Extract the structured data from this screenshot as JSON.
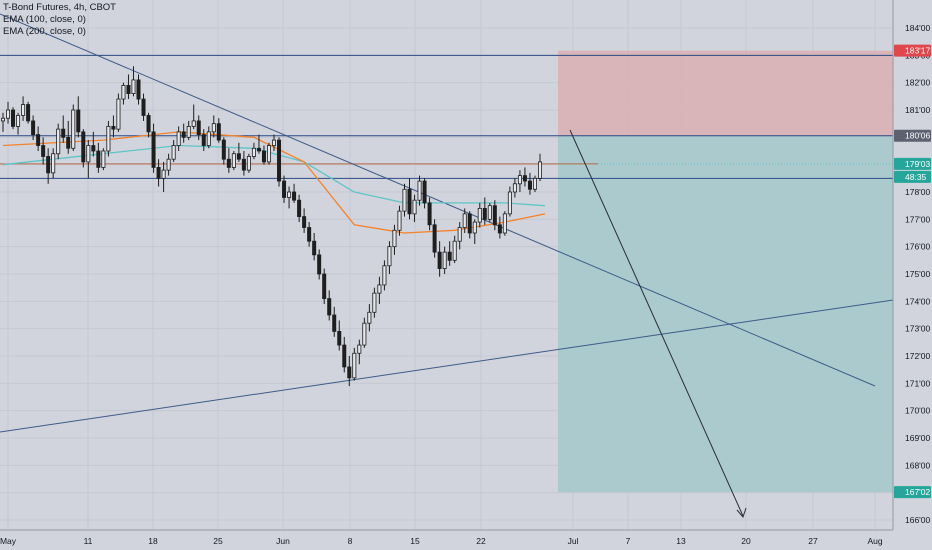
{
  "legend": {
    "symbol": "T-Bond Futures, 4h, CBOT",
    "ema1": "EMA (100, close, 0)",
    "ema2": "EMA (200, close, 0)"
  },
  "colors": {
    "background": "#d1d4dc",
    "grid": "#c5c8d0",
    "candle_up": "#1e1e1e",
    "candle_down": "#1e1e1e",
    "ema100": "#f5822a",
    "ema200": "#5ec5c8",
    "trendline": "#3d5a8a",
    "hline": "#2a4a85",
    "stop_zone": "#d9b0b5",
    "target_zone": "#a5c9cb",
    "stop_label": "#e0474c",
    "target_label": "#26a69a",
    "price_label": "#26a69a",
    "arrow": "#2a2e39"
  },
  "chart_data": {
    "type": "candlestick",
    "title": "T-Bond Futures, 4h, CBOT",
    "ylim": [
      165.6,
      184.5
    ],
    "y_ticks": [
      "184'00",
      "183'00",
      "182'00",
      "181'00",
      "180'00",
      "179'00",
      "178'00",
      "177'00",
      "176'00",
      "175'00",
      "174'00",
      "173'00",
      "172'00",
      "171'00",
      "170'00",
      "169'00",
      "168'00",
      "167'00",
      "166'00"
    ],
    "x_ticks": [
      "May",
      "11",
      "18",
      "25",
      "Jun",
      "8",
      "15",
      "22",
      "Jul",
      "7",
      "13",
      "20",
      "27",
      "Aug"
    ],
    "price_labels": {
      "stop": "183'17",
      "entry": "180'06",
      "current": "179'03",
      "countdown": "48:35",
      "target": "167'02"
    },
    "horizontal_levels": [
      183.0,
      180.06,
      179.03,
      178.5
    ],
    "position": {
      "entry": 180.06,
      "stop": 183.17,
      "target": 167.02
    },
    "candles": [
      [
        180.6,
        180.9,
        180.2,
        180.7
      ],
      [
        180.7,
        181.3,
        180.5,
        181.0
      ],
      [
        181.0,
        181.1,
        180.3,
        180.4
      ],
      [
        180.4,
        180.9,
        180.1,
        180.8
      ],
      [
        180.8,
        181.5,
        180.6,
        181.2
      ],
      [
        181.2,
        181.3,
        180.5,
        180.6
      ],
      [
        180.6,
        180.8,
        179.9,
        180.1
      ],
      [
        180.1,
        180.4,
        179.5,
        179.7
      ],
      [
        179.7,
        180.0,
        179.0,
        179.3
      ],
      [
        179.3,
        179.6,
        178.3,
        178.7
      ],
      [
        178.7,
        179.6,
        178.5,
        179.4
      ],
      [
        179.4,
        180.5,
        179.2,
        180.3
      ],
      [
        180.3,
        180.8,
        179.8,
        180.0
      ],
      [
        180.0,
        180.6,
        179.4,
        179.6
      ],
      [
        179.6,
        181.2,
        179.5,
        181.0
      ],
      [
        181.0,
        181.5,
        180.0,
        180.2
      ],
      [
        180.2,
        180.3,
        178.9,
        179.1
      ],
      [
        179.1,
        179.9,
        178.5,
        179.7
      ],
      [
        179.7,
        180.2,
        179.3,
        179.5
      ],
      [
        179.5,
        179.8,
        178.7,
        178.9
      ],
      [
        178.9,
        179.6,
        178.8,
        179.5
      ],
      [
        179.5,
        180.6,
        179.3,
        180.4
      ],
      [
        180.4,
        180.8,
        180.0,
        180.3
      ],
      [
        180.3,
        181.6,
        180.2,
        181.4
      ],
      [
        181.4,
        182.0,
        181.2,
        181.9
      ],
      [
        181.9,
        182.3,
        181.4,
        181.6
      ],
      [
        181.6,
        182.6,
        181.5,
        182.1
      ],
      [
        182.1,
        182.3,
        181.2,
        181.4
      ],
      [
        181.4,
        181.6,
        180.6,
        180.8
      ],
      [
        180.8,
        180.9,
        180.0,
        180.2
      ],
      [
        180.2,
        180.5,
        178.7,
        178.9
      ],
      [
        178.9,
        179.2,
        178.2,
        178.5
      ],
      [
        178.5,
        179.1,
        178.0,
        178.8
      ],
      [
        178.8,
        179.4,
        178.6,
        179.2
      ],
      [
        179.2,
        179.9,
        179.1,
        179.7
      ],
      [
        179.7,
        180.4,
        179.5,
        180.2
      ],
      [
        180.2,
        180.5,
        179.8,
        180.0
      ],
      [
        180.0,
        180.6,
        179.9,
        180.4
      ],
      [
        180.4,
        181.2,
        180.3,
        180.6
      ],
      [
        180.6,
        180.8,
        179.9,
        180.1
      ],
      [
        180.1,
        180.3,
        179.5,
        179.7
      ],
      [
        179.7,
        180.4,
        179.6,
        180.2
      ],
      [
        180.2,
        180.8,
        180.0,
        180.5
      ],
      [
        180.5,
        180.7,
        179.8,
        179.9
      ],
      [
        179.9,
        180.0,
        179.0,
        179.2
      ],
      [
        179.2,
        179.6,
        178.7,
        178.9
      ],
      [
        178.9,
        179.5,
        178.8,
        179.4
      ],
      [
        179.4,
        179.8,
        179.1,
        179.2
      ],
      [
        179.2,
        179.5,
        178.6,
        178.8
      ],
      [
        178.8,
        179.4,
        178.7,
        179.3
      ],
      [
        179.3,
        179.8,
        179.2,
        179.6
      ],
      [
        179.6,
        180.1,
        179.4,
        179.5
      ],
      [
        179.5,
        179.7,
        179.0,
        179.1
      ],
      [
        179.1,
        179.8,
        179.0,
        179.7
      ],
      [
        179.7,
        180.1,
        179.5,
        179.9
      ],
      [
        179.9,
        180.0,
        178.2,
        178.4
      ],
      [
        178.4,
        178.6,
        177.6,
        177.8
      ],
      [
        177.8,
        178.2,
        177.4,
        178.0
      ],
      [
        178.0,
        178.3,
        177.6,
        177.7
      ],
      [
        177.7,
        177.9,
        176.9,
        177.1
      ],
      [
        177.1,
        177.4,
        176.5,
        176.7
      ],
      [
        176.7,
        176.9,
        176.0,
        176.2
      ],
      [
        176.2,
        176.5,
        175.5,
        175.7
      ],
      [
        175.7,
        175.9,
        174.8,
        175.0
      ],
      [
        175.0,
        175.2,
        173.9,
        174.1
      ],
      [
        174.1,
        174.4,
        173.3,
        173.5
      ],
      [
        173.5,
        173.8,
        172.7,
        172.9
      ],
      [
        172.9,
        173.3,
        172.2,
        172.4
      ],
      [
        172.4,
        172.7,
        171.4,
        171.6
      ],
      [
        171.6,
        172.0,
        170.9,
        171.2
      ],
      [
        171.2,
        172.3,
        171.1,
        172.1
      ],
      [
        172.1,
        172.6,
        171.7,
        172.4
      ],
      [
        172.4,
        173.4,
        172.3,
        173.2
      ],
      [
        173.2,
        173.9,
        172.9,
        173.6
      ],
      [
        173.6,
        174.5,
        173.4,
        174.3
      ],
      [
        174.3,
        174.9,
        173.9,
        174.6
      ],
      [
        174.6,
        175.5,
        174.4,
        175.3
      ],
      [
        175.3,
        176.2,
        175.0,
        176.0
      ],
      [
        176.0,
        176.8,
        175.7,
        176.6
      ],
      [
        176.6,
        177.5,
        176.4,
        177.3
      ],
      [
        177.3,
        178.3,
        177.1,
        178.1
      ],
      [
        178.1,
        178.5,
        177.0,
        177.2
      ],
      [
        177.2,
        177.9,
        176.9,
        177.7
      ],
      [
        177.7,
        178.6,
        177.5,
        178.4
      ],
      [
        178.4,
        178.5,
        177.4,
        177.6
      ],
      [
        177.6,
        177.8,
        176.6,
        176.8
      ],
      [
        176.8,
        177.0,
        175.6,
        175.8
      ],
      [
        175.8,
        176.2,
        174.9,
        175.2
      ],
      [
        175.2,
        176.0,
        175.0,
        175.8
      ],
      [
        175.8,
        176.2,
        175.3,
        175.5
      ],
      [
        175.5,
        176.4,
        175.4,
        176.2
      ],
      [
        176.2,
        176.9,
        175.9,
        176.7
      ],
      [
        176.7,
        177.4,
        176.5,
        177.2
      ],
      [
        177.2,
        177.3,
        176.3,
        176.5
      ],
      [
        176.5,
        177.0,
        176.1,
        176.9
      ],
      [
        176.9,
        177.6,
        176.7,
        177.4
      ],
      [
        177.4,
        177.8,
        176.8,
        177.0
      ],
      [
        177.0,
        177.6,
        176.9,
        177.5
      ],
      [
        177.5,
        177.7,
        176.6,
        176.8
      ],
      [
        176.8,
        177.1,
        176.3,
        176.5
      ],
      [
        176.5,
        177.3,
        176.4,
        177.2
      ],
      [
        177.2,
        178.2,
        177.1,
        178.0
      ],
      [
        178.0,
        178.5,
        177.8,
        178.3
      ],
      [
        178.3,
        178.8,
        178.0,
        178.6
      ],
      [
        178.6,
        178.9,
        178.2,
        178.4
      ],
      [
        178.4,
        178.7,
        177.9,
        178.1
      ],
      [
        178.1,
        178.6,
        178.0,
        178.5
      ],
      [
        178.5,
        179.4,
        178.4,
        179.1
      ]
    ],
    "ema100": [
      [
        0,
        179.7
      ],
      [
        20,
        179.9
      ],
      [
        35,
        180.2
      ],
      [
        50,
        180.0
      ],
      [
        60,
        179.1
      ],
      [
        70,
        176.8
      ],
      [
        80,
        176.5
      ],
      [
        90,
        176.6
      ],
      [
        100,
        176.9
      ],
      [
        108,
        177.2
      ]
    ],
    "ema200": [
      [
        0,
        179.0
      ],
      [
        20,
        179.4
      ],
      [
        35,
        179.7
      ],
      [
        50,
        179.6
      ],
      [
        60,
        179.1
      ],
      [
        70,
        178.0
      ],
      [
        80,
        177.6
      ],
      [
        90,
        177.6
      ],
      [
        100,
        177.6
      ],
      [
        108,
        177.5
      ]
    ]
  }
}
